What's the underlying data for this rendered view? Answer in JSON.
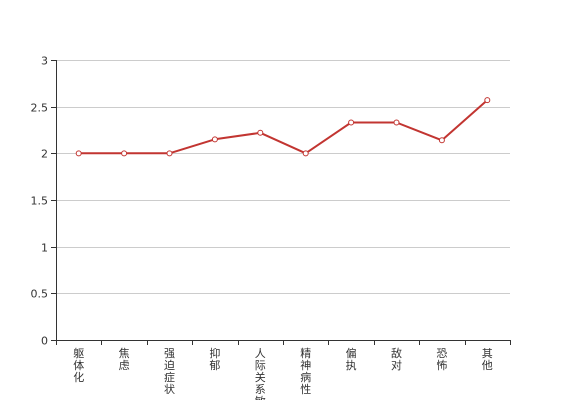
{
  "chart_data": {
    "type": "line",
    "categories": [
      "躯体化",
      "焦虑",
      "强迫症状",
      "抑郁",
      "人际关系敏感",
      "精神病性",
      "偏执",
      "敌对",
      "恐怖",
      "其他"
    ],
    "values": [
      2.0,
      2.0,
      2.0,
      2.15,
      2.22,
      2.0,
      2.33,
      2.33,
      2.14,
      2.57
    ],
    "ylim": [
      0,
      3
    ],
    "yticks": [
      "0",
      "0.5",
      "1",
      "1.5",
      "2",
      "2.5",
      "3"
    ],
    "grid": true,
    "colors": {
      "series": "#c23531",
      "grid": "#cccccc",
      "axis": "#333333",
      "marker_fill": "#ffffff"
    }
  }
}
